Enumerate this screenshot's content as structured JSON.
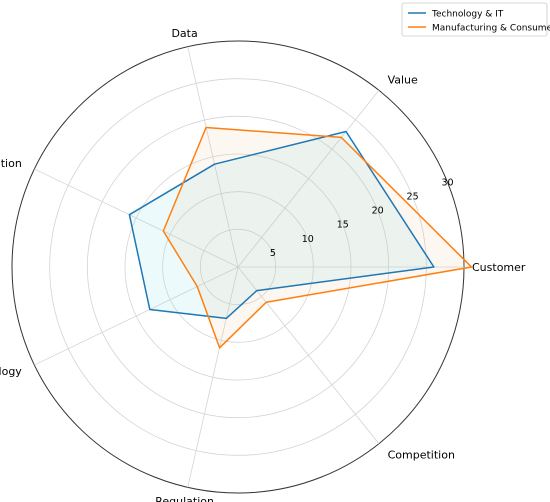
{
  "chart_data": {
    "type": "radar",
    "axes": [
      "Customer",
      "Value",
      "Data",
      "Innovation",
      "Technology",
      "Regulation",
      "Competition"
    ],
    "rticks": [
      5,
      10,
      15,
      20,
      25,
      30
    ],
    "rlim": [
      0,
      30
    ],
    "grid": true,
    "legend_position": "top-right",
    "series": [
      {
        "name": "Technology & IT",
        "color": "#1f77b4",
        "values": [
          26,
          23,
          14,
          16,
          13,
          7,
          4
        ]
      },
      {
        "name": "Manufacturing & Consumer",
        "color": "#ff7f0e",
        "values": [
          31,
          22,
          19,
          11,
          6,
          11,
          6
        ]
      }
    ]
  }
}
